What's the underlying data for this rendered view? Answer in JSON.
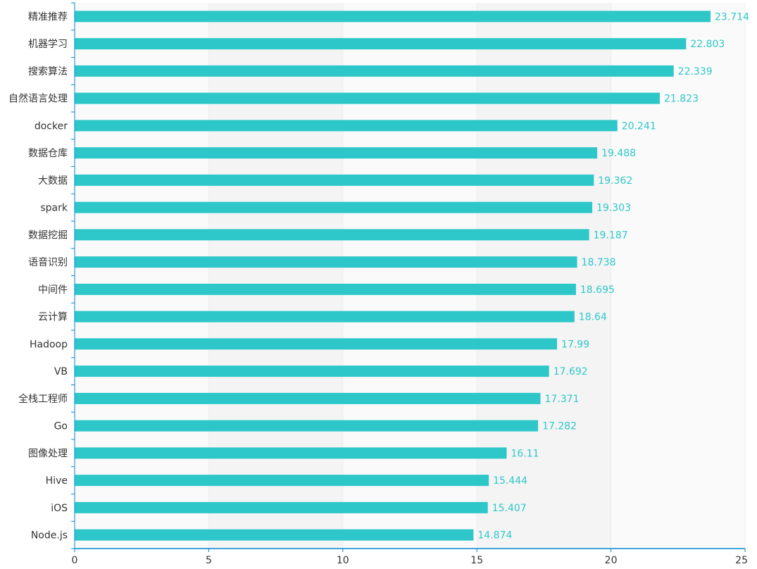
{
  "chart_data": {
    "type": "bar",
    "orientation": "horizontal",
    "categories": [
      "Node.js",
      "iOS",
      "Hive",
      "图像处理",
      "Go",
      "全栈工程师",
      "VB",
      "Hadoop",
      "云计算",
      "中间件",
      "语音识别",
      "数据挖掘",
      "spark",
      "大数据",
      "数据仓库",
      "docker",
      "自然语言处理",
      "搜索算法",
      "机器学习",
      "精准推荐"
    ],
    "values": [
      14.874,
      15.407,
      15.444,
      16.11,
      17.282,
      17.371,
      17.692,
      17.99,
      18.64,
      18.695,
      18.738,
      19.187,
      19.303,
      19.362,
      19.488,
      20.241,
      21.823,
      22.339,
      22.803,
      23.714
    ],
    "value_labels": [
      "14.874",
      "15.407",
      "15.444",
      "16.11",
      "17.282",
      "17.371",
      "17.692",
      "17.99",
      "18.64",
      "18.695",
      "18.738",
      "19.187",
      "19.303",
      "19.362",
      "19.488",
      "20.241",
      "21.823",
      "22.339",
      "22.803",
      "23.714"
    ],
    "xlim": [
      0,
      25
    ],
    "x_ticks": [
      "0",
      "5",
      "10",
      "15",
      "20",
      "25"
    ],
    "title": "",
    "xlabel": "",
    "ylabel": "",
    "grid": "vertical split areas",
    "legend": "none",
    "colors": {
      "bar": "#2ec7c9",
      "value_label": "#2ec7c9",
      "axis": "#008acd",
      "split_area_light": "#fafafa",
      "split_area_dark": "#f4f4f4",
      "split_line": "#eeeeee",
      "text": "#333333"
    }
  }
}
